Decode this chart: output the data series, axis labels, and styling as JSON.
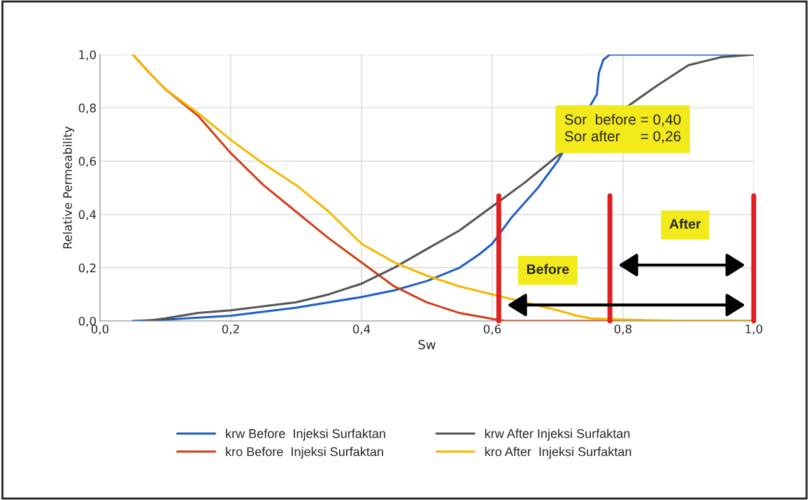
{
  "chart_data": {
    "type": "line",
    "xlabel": "Sw",
    "ylabel": "Relative Permeability",
    "series": [
      {
        "name": "krw Before  Injeksi Surfaktan",
        "color": "#1f5fc4",
        "x": [
          0.05,
          0.1,
          0.2,
          0.3,
          0.4,
          0.45,
          0.5,
          0.55,
          0.58,
          0.6,
          0.63,
          0.67,
          0.7,
          0.74,
          0.755,
          0.76,
          0.763,
          0.77,
          0.78,
          0.8,
          1.0
        ],
        "values": [
          0,
          0.005,
          0.02,
          0.05,
          0.09,
          0.115,
          0.15,
          0.2,
          0.25,
          0.29,
          0.39,
          0.5,
          0.6,
          null,
          null,
          0.85,
          0.93,
          0.98,
          1.0,
          1.0,
          1.0
        ]
      },
      {
        "name": "kro Before  Injeksi Surfaktan",
        "color": "#d0401a",
        "x": [
          0.05,
          0.08,
          0.1,
          0.15,
          0.2,
          0.25,
          0.3,
          0.35,
          0.4,
          0.45,
          0.5,
          0.55,
          0.6,
          0.62,
          1.0
        ],
        "values": [
          1.0,
          0.92,
          0.87,
          0.77,
          0.63,
          0.51,
          0.41,
          0.31,
          0.22,
          0.13,
          0.07,
          0.03,
          0.008,
          0,
          0
        ]
      },
      {
        "name": "krw After Injeksi Surfaktan",
        "color": "#555555",
        "x": [
          0.07,
          0.1,
          0.15,
          0.2,
          0.3,
          0.35,
          0.4,
          0.45,
          0.5,
          0.55,
          0.6,
          0.65,
          0.7,
          0.75,
          0.8,
          0.85,
          0.9,
          0.95,
          1.0
        ],
        "values": [
          0,
          0.01,
          0.03,
          0.04,
          0.07,
          0.1,
          0.14,
          0.2,
          0.27,
          0.34,
          0.43,
          0.52,
          0.62,
          null,
          null,
          0.88,
          0.96,
          0.99,
          1.0
        ]
      },
      {
        "name": "kro After  Injeksi Surfaktan",
        "color": "#f5b800",
        "x": [
          0.05,
          0.08,
          0.1,
          0.15,
          0.2,
          0.25,
          0.3,
          0.35,
          0.4,
          0.45,
          0.5,
          0.55,
          0.6,
          0.65,
          0.7,
          0.73,
          0.75,
          0.8,
          0.9,
          1.0
        ],
        "values": [
          1.0,
          0.92,
          0.87,
          0.78,
          0.68,
          0.59,
          0.51,
          0.41,
          0.29,
          0.22,
          0.17,
          0.13,
          0.1,
          0.07,
          0.04,
          0.02,
          0.01,
          0.005,
          0,
          0
        ]
      }
    ],
    "xlim": [
      0,
      1.0
    ],
    "ylim": [
      0,
      1.0
    ],
    "xticks": [
      {
        "value": 0,
        "label": "0,0"
      },
      {
        "value": 0.2,
        "label": "0,2"
      },
      {
        "value": 0.4,
        "label": "0,4"
      },
      {
        "value": 0.6,
        "label": "0,6"
      },
      {
        "value": 0.8,
        "label": "0,8"
      },
      {
        "value": 1.0,
        "label": "1,0"
      }
    ],
    "yticks": [
      {
        "value": 0,
        "label": "0,0"
      },
      {
        "value": 0.2,
        "label": "0,2"
      },
      {
        "value": 0.4,
        "label": "0,4"
      },
      {
        "value": 0.6,
        "label": "0,6"
      },
      {
        "value": 0.8,
        "label": "0,8"
      },
      {
        "value": 1.0,
        "label": "1,0"
      }
    ],
    "ref_lines": [
      {
        "axis": "x",
        "value": 0.61,
        "color": "#e02020"
      },
      {
        "axis": "x",
        "value": 0.78,
        "color": "#e02020"
      },
      {
        "axis": "x",
        "value": 1.0,
        "color": "#e02020"
      }
    ],
    "annotations": [
      "Sor  before = 0,40\nSor after     = 0,26",
      "After",
      "Before"
    ],
    "grid": true,
    "legend": "bottom",
    "line_style": "solid",
    "marker": "none"
  }
}
